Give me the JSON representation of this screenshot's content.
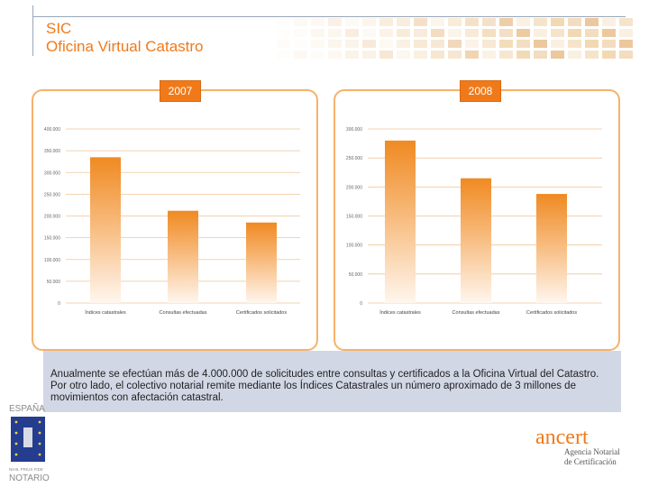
{
  "header": {
    "title_line1": "SIC",
    "title_line2": "Oficina Virtual Catastro"
  },
  "colors": {
    "accent": "#f07a1a",
    "panel_border": "#f5b26b",
    "caption_bg": "#d2d7e6"
  },
  "charts": [
    {
      "year": "2007",
      "y_ticks": [
        "400.000",
        "350.000",
        "300.000",
        "250.000",
        "200.000",
        "150.000",
        "100.000",
        "50.000",
        "0"
      ],
      "categories": [
        "Índices catastrales",
        "Consultas efectuadas",
        "Certificados solicitados"
      ]
    },
    {
      "year": "2008",
      "y_ticks": [
        "300.000",
        "250.000",
        "200.000",
        "150.000",
        "100.000",
        "50.000",
        "0"
      ],
      "categories": [
        "Índices catastrales",
        "Consultas efectuadas",
        "Certificados solicitados"
      ]
    }
  ],
  "chart_data": [
    {
      "type": "bar",
      "title": "2007",
      "categories": [
        "Índices catastrales",
        "Consultas efectuadas",
        "Certificados solicitados"
      ],
      "values": [
        335000,
        212000,
        185000
      ],
      "ylim": [
        0,
        400000
      ],
      "grid": true
    },
    {
      "type": "bar",
      "title": "2008",
      "categories": [
        "Índices catastrales",
        "Consultas efectuadas",
        "Certificados solicitados"
      ],
      "values": [
        280000,
        215000,
        188000
      ],
      "ylim": [
        0,
        300000
      ],
      "grid": true
    }
  ],
  "caption": "Anualmente se efectúan más de 4.000.000 de solicitudes entre consultas y certificados a la Oficina Virtual del Catastro.  Por otro lado,  el colectivo notarial remite mediante los Índices Catastrales un número aproximado de 3 millones de movimientos con afectación catastral.",
  "logos": {
    "left_top": "ESPAÑA",
    "left_motto": "NIHIL PRIUS FIDE",
    "left_bottom": "NOTARIO",
    "right_name": "ancert",
    "right_line1": "Agencia Notarial",
    "right_line2": "de Certificación"
  }
}
